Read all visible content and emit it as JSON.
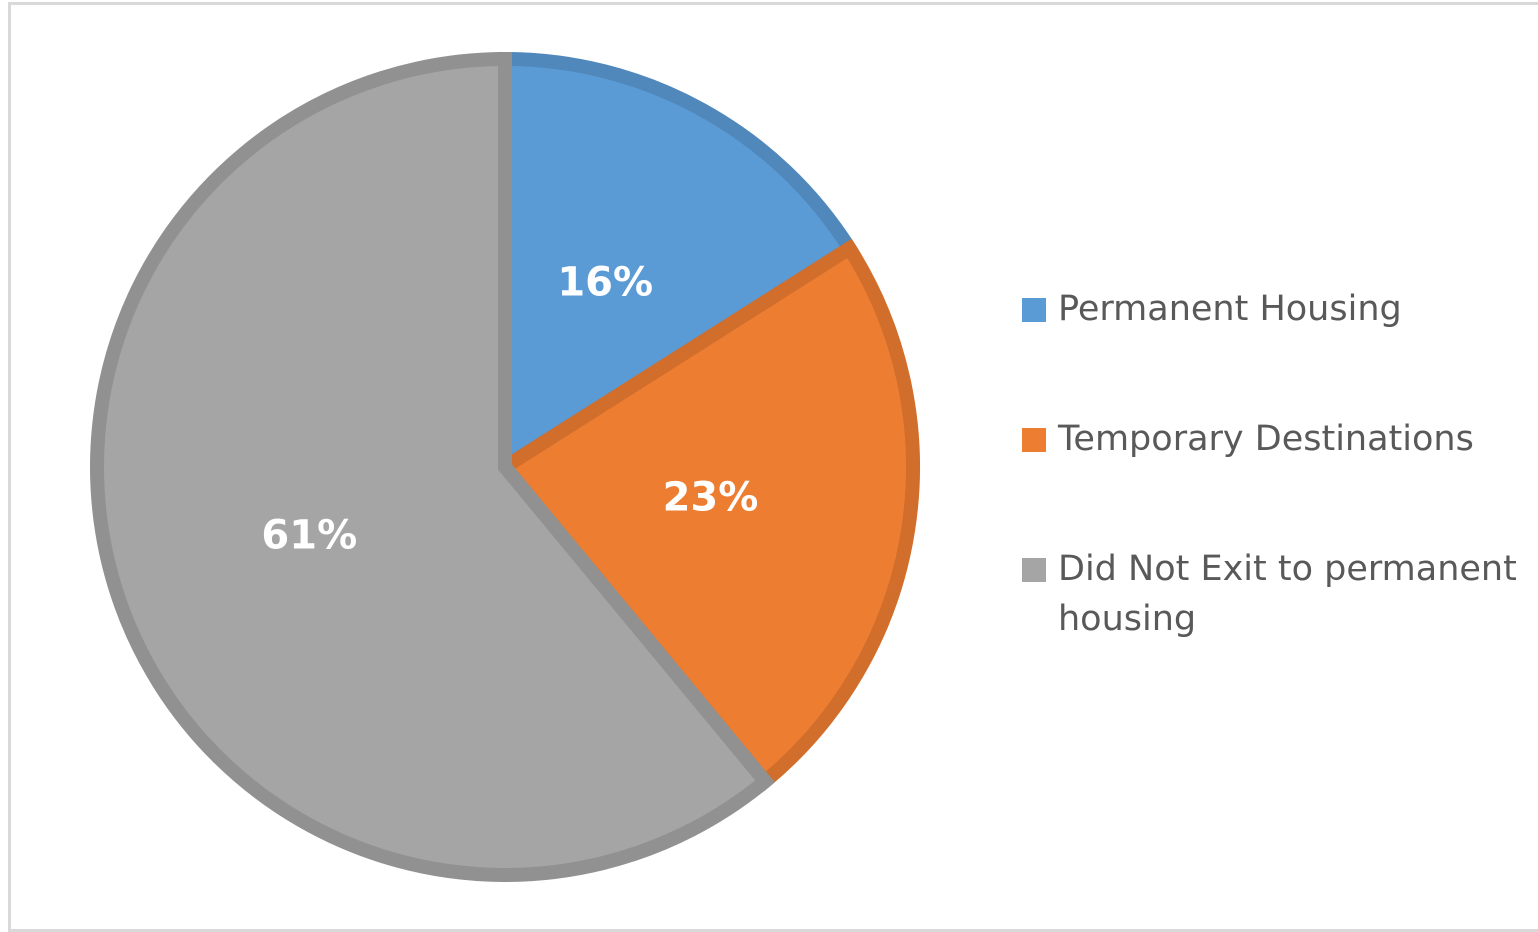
{
  "chart_data": {
    "type": "pie",
    "categories": [
      "Permanent Housing",
      "Temporary Destinations",
      "Did Not Exit to permanent housing"
    ],
    "values": [
      16,
      23,
      61
    ],
    "value_labels": [
      "16%",
      "23%",
      "61%"
    ],
    "colors": [
      "#5b9bd5",
      "#ed7d31",
      "#a5a5a5"
    ],
    "legend": "right"
  }
}
